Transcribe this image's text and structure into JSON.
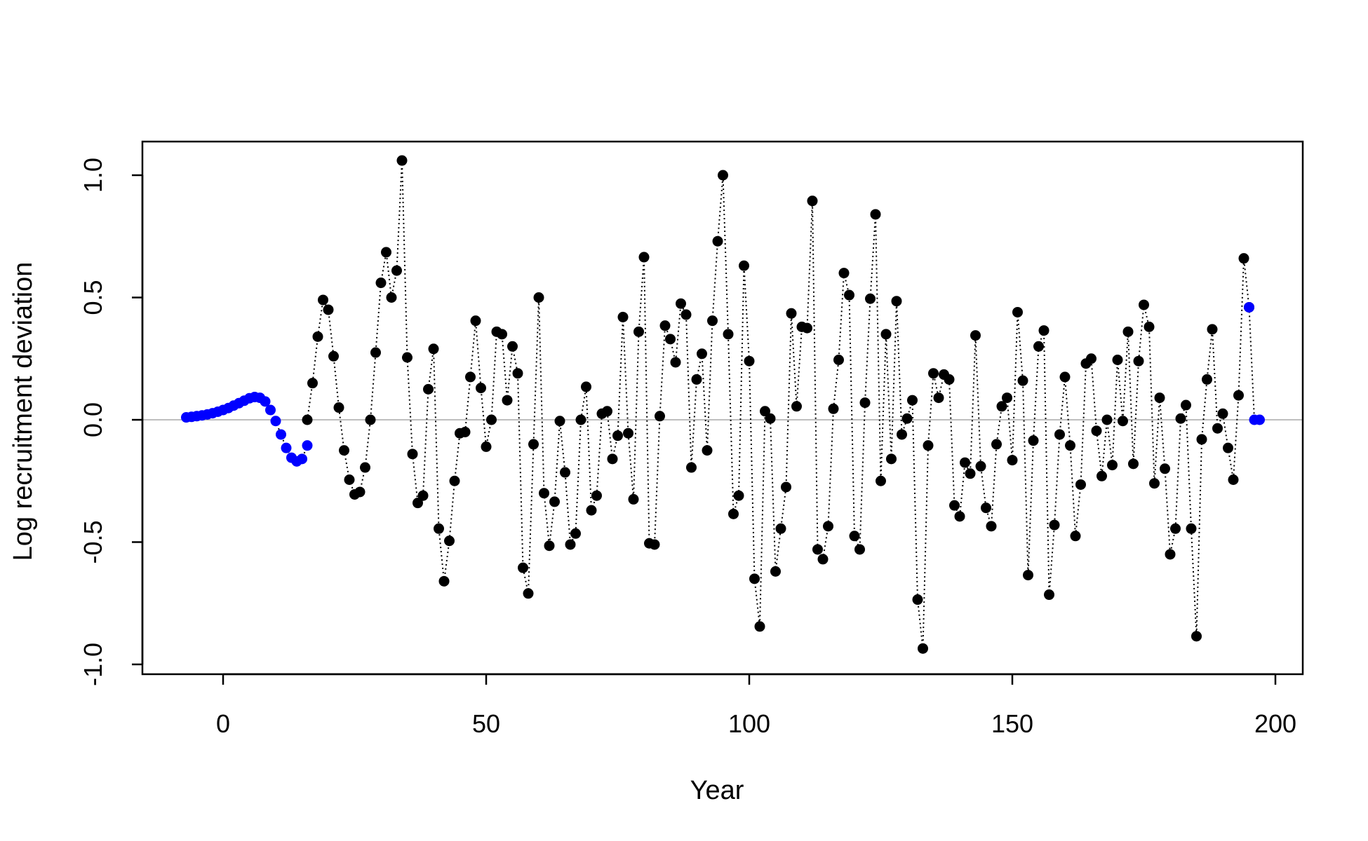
{
  "chart_data": {
    "type": "line",
    "xlabel": "Year",
    "ylabel": "Log recruitment deviation",
    "xlim": [
      -15,
      205
    ],
    "ylim": [
      -1.0,
      1.0
    ],
    "x_ticks": [
      0,
      50,
      100,
      150,
      200
    ],
    "y_ticks": [
      -1.0,
      -0.5,
      0.0,
      0.5,
      1.0
    ],
    "x_tick_labels": [
      "0",
      "50",
      "100",
      "150",
      "200"
    ],
    "y_tick_labels": [
      "-1.0",
      "-0.5",
      "0.0",
      "0.5",
      "1.0"
    ],
    "reference_line": {
      "y": 0.0,
      "color": "#bebebe"
    },
    "line_style": "dotted",
    "colors": {
      "main": "#000000",
      "early": "#0000ff",
      "forecast": "#0000ff"
    },
    "series": [
      {
        "group": "early",
        "color": "#0000ff",
        "x": [
          -7,
          -6,
          -5,
          -4,
          -3,
          -2,
          -1,
          0,
          1,
          2,
          3,
          4,
          5,
          6,
          7,
          8,
          9,
          10,
          11,
          12,
          13,
          14,
          15,
          16
        ],
        "y": [
          0.01,
          0.012,
          0.015,
          0.018,
          0.022,
          0.027,
          0.033,
          0.04,
          0.048,
          0.058,
          0.068,
          0.078,
          0.088,
          0.093,
          0.09,
          0.075,
          0.04,
          -0.005,
          -0.06,
          -0.115,
          -0.155,
          -0.17,
          -0.16,
          -0.105
        ]
      },
      {
        "group": "main",
        "color": "#000000",
        "x": [
          16,
          17,
          18,
          19,
          20,
          21,
          22,
          23,
          24,
          25,
          26,
          27,
          28,
          29,
          30,
          31,
          32,
          33,
          34,
          35,
          36,
          37,
          38,
          39,
          40,
          41,
          42,
          43,
          44,
          45,
          46,
          47,
          48,
          49,
          50,
          51,
          52,
          53,
          54,
          55,
          56,
          57,
          58,
          59,
          60,
          61,
          62,
          63,
          64,
          65,
          66,
          67,
          68,
          69,
          70,
          71,
          72,
          73,
          74,
          75,
          76,
          77,
          78,
          79,
          80,
          81,
          82,
          83,
          84,
          85,
          86,
          87,
          88,
          89,
          90,
          91,
          92,
          93,
          94,
          95,
          96,
          97,
          98,
          99,
          100,
          101,
          102,
          103,
          104,
          105,
          106,
          107,
          108,
          109,
          110,
          111,
          112,
          113,
          114,
          115,
          116,
          117,
          118,
          119,
          120,
          121,
          122,
          123,
          124,
          125,
          126,
          127,
          128,
          129,
          130,
          131,
          132,
          133,
          134,
          135,
          136,
          137,
          138,
          139,
          140,
          141,
          142,
          143,
          144,
          145,
          146,
          147,
          148,
          149,
          150,
          151,
          152,
          153,
          154,
          155,
          156,
          157,
          158,
          159,
          160,
          161,
          162,
          163,
          164,
          165,
          166,
          167,
          168,
          169,
          170,
          171,
          172,
          173,
          174,
          175,
          176,
          177,
          178,
          179,
          180,
          181,
          182,
          183,
          184,
          185,
          186,
          187,
          188,
          189,
          190,
          191,
          192,
          193,
          194,
          195
        ],
        "y": [
          0.0,
          0.15,
          0.34,
          0.49,
          0.45,
          0.26,
          0.05,
          -0.125,
          -0.245,
          -0.305,
          -0.295,
          -0.195,
          0.0,
          0.275,
          0.56,
          0.685,
          0.5,
          0.61,
          1.06,
          0.255,
          -0.14,
          -0.34,
          -0.31,
          0.125,
          0.29,
          -0.445,
          -0.66,
          -0.495,
          -0.25,
          -0.055,
          -0.05,
          0.175,
          0.405,
          0.13,
          -0.11,
          0.0,
          0.36,
          0.35,
          0.08,
          0.3,
          0.19,
          -0.605,
          -0.71,
          -0.1,
          0.5,
          -0.3,
          -0.515,
          -0.335,
          -0.005,
          -0.215,
          -0.51,
          -0.465,
          0.0,
          0.135,
          -0.37,
          -0.31,
          0.025,
          0.035,
          -0.16,
          -0.065,
          0.42,
          -0.055,
          -0.325,
          0.36,
          0.665,
          -0.505,
          -0.51,
          0.015,
          0.385,
          0.33,
          0.235,
          0.475,
          0.43,
          -0.195,
          0.165,
          0.27,
          -0.125,
          0.405,
          0.73,
          1.0,
          0.35,
          -0.385,
          -0.31,
          0.63,
          0.24,
          -0.65,
          -0.845,
          0.035,
          0.005,
          -0.62,
          -0.445,
          -0.275,
          0.435,
          0.055,
          0.38,
          0.375,
          0.895,
          -0.53,
          -0.57,
          -0.435,
          0.045,
          0.245,
          0.6,
          0.51,
          -0.475,
          -0.53,
          0.07,
          0.495,
          0.84,
          -0.25,
          0.35,
          -0.16,
          0.485,
          -0.06,
          0.005,
          0.08,
          -0.735,
          -0.935,
          -0.105,
          0.19,
          0.09,
          0.185,
          0.165,
          -0.35,
          -0.395,
          -0.175,
          -0.22,
          0.345,
          -0.19,
          -0.36,
          -0.435,
          -0.1,
          0.055,
          0.09,
          -0.165,
          0.44,
          0.16,
          -0.635,
          -0.085,
          0.3,
          0.365,
          -0.715,
          -0.43,
          -0.06,
          0.175,
          -0.105,
          -0.475,
          -0.265,
          0.23,
          0.25,
          -0.045,
          -0.23,
          0.0,
          -0.185,
          0.245,
          -0.005,
          0.36,
          -0.18,
          0.24,
          0.47,
          0.38,
          -0.26,
          0.09,
          -0.2,
          -0.55,
          -0.445,
          0.005,
          0.06,
          -0.445,
          -0.885,
          -0.08,
          0.165,
          0.37,
          -0.035,
          0.025,
          -0.115,
          -0.245,
          0.1,
          0.66,
          0.46
        ]
      },
      {
        "group": "forecast",
        "color": "#0000ff",
        "x": [
          195,
          196,
          197
        ],
        "y": [
          0.46,
          0.0,
          0.0
        ]
      }
    ]
  }
}
